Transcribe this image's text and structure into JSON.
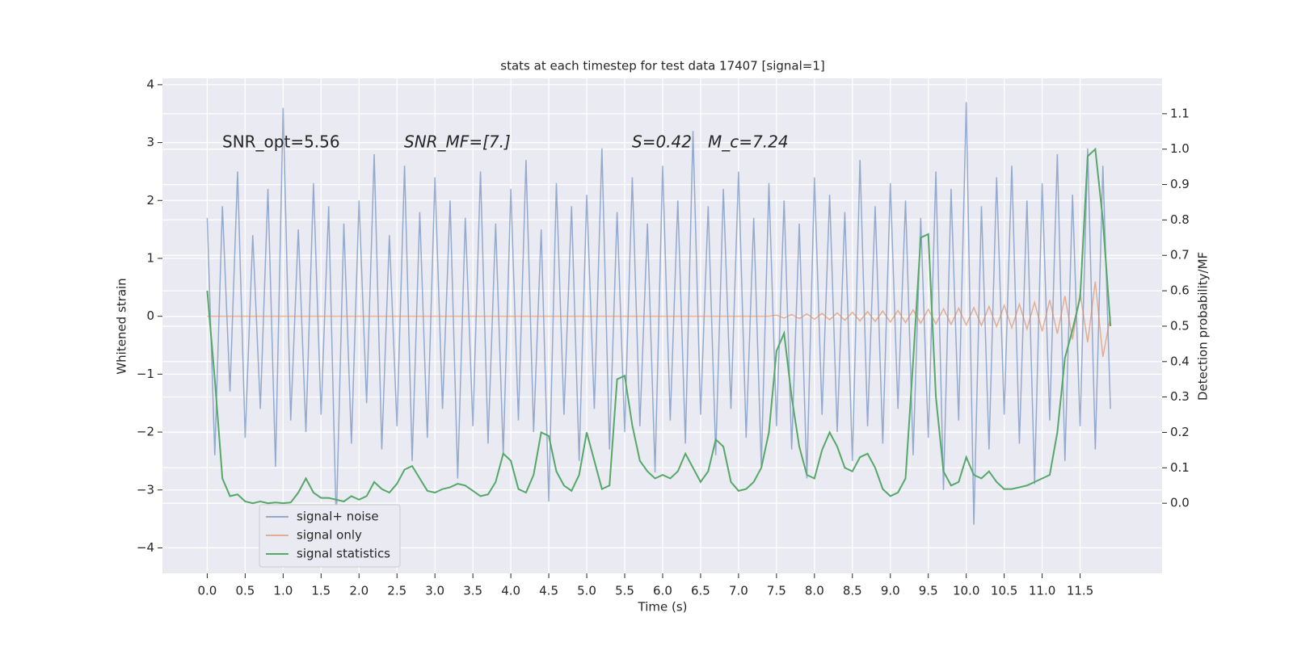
{
  "chart_data": {
    "type": "line",
    "title": "stats at each timestep for test data 17407 [signal=1]",
    "xlabel": "Time (s)",
    "ylabel": "Whitened strain",
    "y2label": "Detection probability/MF",
    "annotations": [
      "SNR_opt=5.56",
      "SNR_MF=[7.]",
      "S=0.42",
      "M_c=7.24"
    ],
    "grid": true,
    "legend": "lower left",
    "xlim": [
      -0.59,
      12.58
    ],
    "ylim": [
      -4.44,
      4.11
    ],
    "y2lim": [
      -0.198,
      1.2
    ],
    "xticks": [
      {
        "value": 0,
        "label": "0.0"
      },
      {
        "value": 0.5,
        "label": "0.5"
      },
      {
        "value": 1,
        "label": "1.0"
      },
      {
        "value": 1.5,
        "label": "1.5"
      },
      {
        "value": 2,
        "label": "2.0"
      },
      {
        "value": 2.5,
        "label": "2.5"
      },
      {
        "value": 3,
        "label": "3.0"
      },
      {
        "value": 3.5,
        "label": "3.5"
      },
      {
        "value": 4,
        "label": "4.0"
      },
      {
        "value": 4.5,
        "label": "4.5"
      },
      {
        "value": 5,
        "label": "5.0"
      },
      {
        "value": 5.5,
        "label": "5.5"
      },
      {
        "value": 6,
        "label": "6.0"
      },
      {
        "value": 6.5,
        "label": "6.5"
      },
      {
        "value": 7,
        "label": "7.0"
      },
      {
        "value": 7.5,
        "label": "7.5"
      },
      {
        "value": 8,
        "label": "8.0"
      },
      {
        "value": 8.5,
        "label": "8.5"
      },
      {
        "value": 9,
        "label": "9.0"
      },
      {
        "value": 9.5,
        "label": "9.5"
      },
      {
        "value": 10,
        "label": "10.0"
      },
      {
        "value": 10.5,
        "label": "10.5"
      },
      {
        "value": 11,
        "label": "11.0"
      },
      {
        "value": 11.5,
        "label": "11.5"
      }
    ],
    "yticks": [
      {
        "value": -4,
        "label": "−4"
      },
      {
        "value": -3,
        "label": "−3"
      },
      {
        "value": -2,
        "label": "−2"
      },
      {
        "value": -1,
        "label": "−1"
      },
      0,
      1,
      2,
      3,
      4
    ],
    "y2ticks": [
      {
        "value": 0,
        "label": "0.0"
      },
      {
        "value": 0.1,
        "label": "0.1"
      },
      {
        "value": 0.2,
        "label": "0.2"
      },
      {
        "value": 0.3,
        "label": "0.3"
      },
      {
        "value": 0.4,
        "label": "0.4"
      },
      {
        "value": 0.5,
        "label": "0.5"
      },
      {
        "value": 0.6,
        "label": "0.6"
      },
      {
        "value": 0.7,
        "label": "0.7"
      },
      {
        "value": 0.8,
        "label": "0.8"
      },
      {
        "value": 0.9,
        "label": "0.9"
      },
      {
        "value": 1,
        "label": "1.0"
      },
      {
        "value": 1.1,
        "label": "1.1"
      }
    ],
    "x": [
      0,
      0.1,
      0.2,
      0.3,
      0.4,
      0.5,
      0.6,
      0.7,
      0.8,
      0.9,
      1,
      1.1,
      1.2,
      1.3,
      1.4,
      1.5,
      1.6,
      1.7,
      1.8,
      1.9,
      2,
      2.1,
      2.2,
      2.3,
      2.4,
      2.5,
      2.6,
      2.7,
      2.8,
      2.9,
      3,
      3.1,
      3.2,
      3.3,
      3.4,
      3.5,
      3.6,
      3.7,
      3.8,
      3.9,
      4,
      4.1,
      4.2,
      4.3,
      4.4,
      4.5,
      4.6,
      4.7,
      4.8,
      4.9,
      5,
      5.1,
      5.2,
      5.3,
      5.4,
      5.5,
      5.6,
      5.7,
      5.8,
      5.9,
      6,
      6.1,
      6.2,
      6.3,
      6.4,
      6.5,
      6.6,
      6.7,
      6.8,
      6.9,
      7,
      7.1,
      7.2,
      7.3,
      7.4,
      7.5,
      7.6,
      7.7,
      7.8,
      7.9,
      8,
      8.1,
      8.2,
      8.3,
      8.4,
      8.5,
      8.6,
      8.7,
      8.8,
      8.9,
      9,
      9.1,
      9.2,
      9.3,
      9.4,
      9.5,
      9.6,
      9.7,
      9.8,
      9.9,
      10,
      10.1,
      10.2,
      10.3,
      10.4,
      10.5,
      10.6,
      10.7,
      10.8,
      10.9,
      11,
      11.1,
      11.2,
      11.3,
      11.4,
      11.5,
      11.6,
      11.7,
      11.8,
      11.9
    ],
    "series": [
      {
        "name": "signal+ noise",
        "color": "#4c72b0",
        "values": [
          1.7,
          -2.4,
          1.9,
          -1.3,
          2.5,
          -2.1,
          1.4,
          -1.6,
          2.2,
          -2.6,
          3.6,
          -1.8,
          1.5,
          -2.0,
          2.3,
          -1.7,
          1.9,
          -3.6,
          1.6,
          -2.2,
          2.0,
          -1.5,
          2.8,
          -2.3,
          1.4,
          -1.9,
          2.6,
          -2.5,
          1.8,
          -2.1,
          2.4,
          -1.6,
          2.0,
          -2.8,
          1.7,
          -1.9,
          2.5,
          -2.2,
          1.6,
          -2.4,
          2.2,
          -1.8,
          2.7,
          -2.0,
          1.5,
          -3.2,
          2.3,
          -1.7,
          1.9,
          -2.5,
          2.1,
          -1.6,
          2.9,
          -2.3,
          1.8,
          -2.0,
          2.4,
          -1.9,
          1.6,
          -2.7,
          2.6,
          -1.8,
          2.0,
          -2.2,
          3.2,
          -1.7,
          1.9,
          -2.4,
          2.2,
          -1.6,
          2.5,
          -2.1,
          1.7,
          -2.6,
          2.3,
          -1.9,
          2.0,
          -2.3,
          1.6,
          -2.8,
          2.4,
          -1.7,
          2.1,
          -2.0,
          1.8,
          -2.5,
          2.7,
          -1.9,
          1.9,
          -2.2,
          2.3,
          -1.6,
          2.0,
          -2.4,
          1.7,
          -2.1,
          2.5,
          -3.0,
          2.2,
          -1.8,
          3.7,
          -3.6,
          1.9,
          -2.3,
          2.4,
          -1.7,
          2.6,
          -2.2,
          2.0,
          -2.9,
          2.3,
          -1.8,
          2.8,
          -2.5,
          2.1,
          -1.9,
          2.9,
          -2.3,
          2.6,
          -1.6
        ]
      },
      {
        "name": "signal only",
        "color": "#dd8452",
        "values": [
          0,
          0,
          0,
          0,
          0,
          0,
          0,
          0,
          0,
          0,
          0,
          0,
          0,
          0,
          0,
          0,
          0,
          0,
          0,
          0,
          0,
          0,
          0,
          0,
          0,
          0,
          0,
          0,
          0,
          0,
          0,
          0,
          0,
          0,
          0,
          0,
          0,
          0,
          0,
          0,
          0,
          0,
          0,
          0,
          0,
          0,
          0,
          0,
          0,
          0,
          0,
          0,
          0,
          0,
          0,
          0,
          0,
          0,
          0,
          0,
          0,
          0,
          0,
          0,
          0,
          0,
          0,
          0,
          0,
          0,
          0,
          0,
          0,
          0,
          0,
          0.02,
          -0.03,
          0.03,
          -0.04,
          0.04,
          -0.05,
          0.05,
          -0.06,
          0.06,
          -0.07,
          0.07,
          -0.08,
          0.08,
          -0.09,
          0.09,
          -0.1,
          0.1,
          -0.11,
          0.11,
          -0.12,
          0.12,
          -0.13,
          0.13,
          -0.14,
          0.14,
          -0.15,
          0.15,
          -0.16,
          0.17,
          -0.18,
          0.19,
          -0.2,
          0.21,
          -0.22,
          0.24,
          -0.26,
          0.28,
          -0.3,
          0.35,
          -0.4,
          0.4,
          -0.45,
          0.6,
          -0.7,
          0
        ]
      },
      {
        "name": "signal statistics",
        "color": "#55a868",
        "axis": "y2",
        "values": [
          0.6,
          0.35,
          0.07,
          0.02,
          0.025,
          0.005,
          0,
          0.005,
          0,
          0.002,
          0,
          0.002,
          0.03,
          0.07,
          0.03,
          0.015,
          0.015,
          0.01,
          0.005,
          0.02,
          0.01,
          0.02,
          0.06,
          0.04,
          0.03,
          0.055,
          0.095,
          0.105,
          0.07,
          0.035,
          0.03,
          0.04,
          0.045,
          0.055,
          0.05,
          0.035,
          0.02,
          0.025,
          0.06,
          0.14,
          0.12,
          0.04,
          0.03,
          0.08,
          0.2,
          0.19,
          0.09,
          0.05,
          0.035,
          0.08,
          0.2,
          0.12,
          0.04,
          0.05,
          0.35,
          0.36,
          0.22,
          0.12,
          0.09,
          0.07,
          0.08,
          0.07,
          0.09,
          0.14,
          0.1,
          0.06,
          0.09,
          0.18,
          0.16,
          0.06,
          0.035,
          0.04,
          0.06,
          0.1,
          0.2,
          0.43,
          0.48,
          0.3,
          0.16,
          0.08,
          0.07,
          0.15,
          0.2,
          0.16,
          0.1,
          0.09,
          0.13,
          0.14,
          0.1,
          0.04,
          0.02,
          0.03,
          0.07,
          0.4,
          0.75,
          0.76,
          0.3,
          0.09,
          0.05,
          0.06,
          0.13,
          0.08,
          0.07,
          0.09,
          0.06,
          0.04,
          0.04,
          0.045,
          0.05,
          0.06,
          0.07,
          0.08,
          0.2,
          0.41,
          0.49,
          0.58,
          0.98,
          1.0,
          0.8,
          0.5
        ]
      }
    ]
  }
}
